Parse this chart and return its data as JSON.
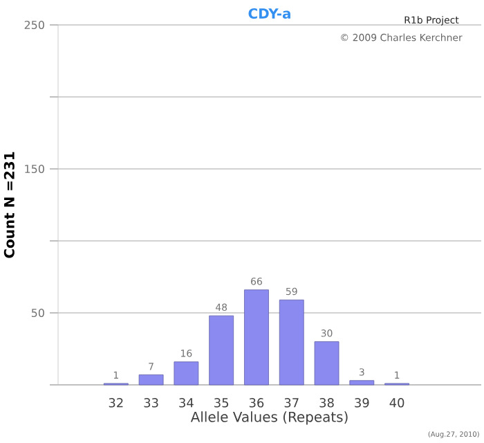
{
  "chart_data": {
    "type": "bar",
    "title": "CDY-a",
    "xlabel": "Allele Values (Repeats)",
    "ylabel": "Count N =231",
    "categories": [
      "32",
      "33",
      "34",
      "35",
      "36",
      "37",
      "38",
      "39",
      "40"
    ],
    "values": [
      1,
      7,
      16,
      48,
      66,
      59,
      30,
      3,
      1
    ],
    "color": "#8a8af0",
    "ylim": [
      0,
      250
    ],
    "yticks": [
      {
        "value": 0,
        "label": null
      },
      50,
      {
        "value": 100,
        "label": null
      },
      150,
      {
        "value": 200,
        "label": null
      },
      250
    ],
    "grid": "y",
    "data_labels": true,
    "annotations": [
      "R1b Project",
      "© 2009 Charles Kerchner",
      "(Aug.27, 2010)"
    ]
  }
}
